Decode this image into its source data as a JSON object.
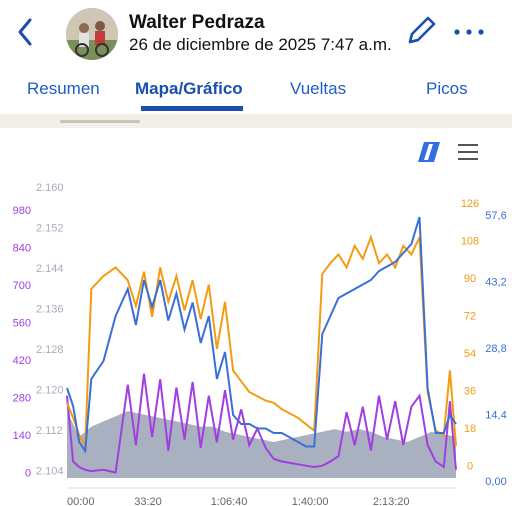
{
  "header": {
    "title": "Walter Pedraza",
    "subtitle": "26 de diciembre de 2025  7:47 a.m."
  },
  "tabs": [
    {
      "label": "Resumen"
    },
    {
      "label": "Mapa/Gráfico"
    },
    {
      "label": "Vueltas"
    },
    {
      "label": "Picos"
    }
  ],
  "colors": {
    "accent": "#1a4fb0",
    "power": "#a23ee0",
    "cadence": "#f39c12",
    "speed": "#3a6fd8",
    "elevation": "#9aa3b5"
  },
  "chart_data": {
    "type": "line",
    "x_ticks": [
      "00:00",
      "33:20",
      "1:06:40",
      "1:40:00",
      "2:13:20"
    ],
    "axes": {
      "elevation_left": {
        "ticks": [
          "2.160",
          "2.152",
          "2.144",
          "2.136",
          "2.128",
          "2.120",
          "2.112",
          "2.104"
        ],
        "color": "#9aa3b5"
      },
      "power_left": {
        "ticks": [
          "980",
          "840",
          "700",
          "560",
          "420",
          "280",
          "140",
          "0"
        ],
        "color": "#a23ee0"
      },
      "cadence_right": {
        "ticks": [
          "126",
          "108",
          "90",
          "72",
          "54",
          "36",
          "18",
          "0"
        ],
        "color": "#f39c12"
      },
      "speed_right": {
        "ticks": [
          "57,6",
          "43,2",
          "28,8",
          "14,4",
          "0,00"
        ],
        "color": "#3a6fd8"
      }
    },
    "x_max_seconds": 9600,
    "series": [
      {
        "key": "elevation",
        "x": [
          0,
          300,
          600,
          900,
          1200,
          1500,
          1800,
          2100,
          2400,
          2700,
          3000,
          3300,
          3600,
          3900,
          4200,
          4500,
          4800,
          5100,
          5400,
          5700,
          6000,
          6300,
          6600,
          6900,
          7200,
          7500,
          7800,
          8100,
          8400,
          8700,
          9000,
          9300,
          9600
        ],
        "y": [
          2.117,
          2.112,
          2.114,
          2.115,
          2.116,
          2.117,
          2.1165,
          2.116,
          2.1155,
          2.115,
          2.1145,
          2.114,
          2.114,
          2.113,
          2.1125,
          2.112,
          2.1115,
          2.111,
          2.1115,
          2.112,
          2.1125,
          2.113,
          2.1135,
          2.113,
          2.1135,
          2.113,
          2.112,
          2.1115,
          2.111,
          2.112,
          2.113,
          2.1125,
          2.112
        ]
      },
      {
        "key": "power",
        "x": [
          0,
          150,
          300,
          450,
          600,
          900,
          1200,
          1500,
          1700,
          1900,
          2100,
          2300,
          2500,
          2700,
          2900,
          3100,
          3300,
          3500,
          3700,
          3900,
          4100,
          4300,
          4500,
          4700,
          4900,
          5100,
          5300,
          5500,
          5700,
          5900,
          6100,
          6300,
          6500,
          6700,
          6900,
          7100,
          7300,
          7500,
          7700,
          7900,
          8100,
          8300,
          8500,
          8700,
          8900,
          9100,
          9300,
          9450,
          9600
        ],
        "y": [
          300,
          60,
          40,
          30,
          25,
          30,
          20,
          340,
          120,
          380,
          150,
          360,
          100,
          330,
          140,
          350,
          110,
          300,
          130,
          320,
          140,
          250,
          120,
          180,
          110,
          70,
          60,
          55,
          50,
          45,
          40,
          45,
          60,
          80,
          240,
          120,
          260,
          100,
          300,
          140,
          280,
          120,
          260,
          300,
          120,
          60,
          40,
          280,
          30
        ]
      },
      {
        "key": "cadence",
        "x": [
          0,
          150,
          300,
          450,
          600,
          900,
          1200,
          1500,
          1700,
          1900,
          2100,
          2300,
          2500,
          2700,
          2900,
          3100,
          3300,
          3500,
          3700,
          3900,
          4100,
          4300,
          4500,
          4700,
          4900,
          5100,
          5300,
          5500,
          5700,
          5900,
          6100,
          6300,
          6500,
          6700,
          6900,
          7100,
          7300,
          7500,
          7700,
          7900,
          8100,
          8300,
          8500,
          8700,
          8900,
          9100,
          9300,
          9450,
          9600
        ],
        "y": [
          35,
          28,
          20,
          15,
          88,
          94,
          98,
          92,
          80,
          96,
          75,
          98,
          82,
          94,
          78,
          92,
          74,
          90,
          60,
          82,
          50,
          45,
          40,
          38,
          36,
          35,
          32,
          30,
          28,
          25,
          22,
          95,
          100,
          104,
          98,
          108,
          102,
          112,
          100,
          104,
          98,
          108,
          104,
          112,
          40,
          22,
          20,
          50,
          15
        ]
      },
      {
        "key": "speed",
        "x": [
          0,
          150,
          300,
          450,
          600,
          900,
          1200,
          1500,
          1700,
          1900,
          2100,
          2300,
          2500,
          2700,
          2900,
          3100,
          3300,
          3500,
          3700,
          3900,
          4100,
          4300,
          4500,
          4700,
          4900,
          5100,
          5300,
          5500,
          5700,
          5900,
          6100,
          6300,
          6500,
          6700,
          6900,
          7100,
          7300,
          7500,
          7700,
          7900,
          8100,
          8300,
          8500,
          8700,
          8900,
          9100,
          9300,
          9450,
          9600
        ],
        "y": [
          20,
          16,
          8,
          6,
          22,
          26,
          36,
          42,
          34,
          44,
          38,
          44,
          35,
          41,
          33,
          39,
          30,
          36,
          22,
          28,
          14,
          12,
          12,
          11,
          11,
          10,
          10,
          9,
          8,
          7,
          7,
          32,
          36,
          40,
          41,
          42,
          43,
          44,
          46,
          47,
          48,
          50,
          52,
          58,
          20,
          10,
          10,
          14,
          12
        ]
      }
    ]
  }
}
